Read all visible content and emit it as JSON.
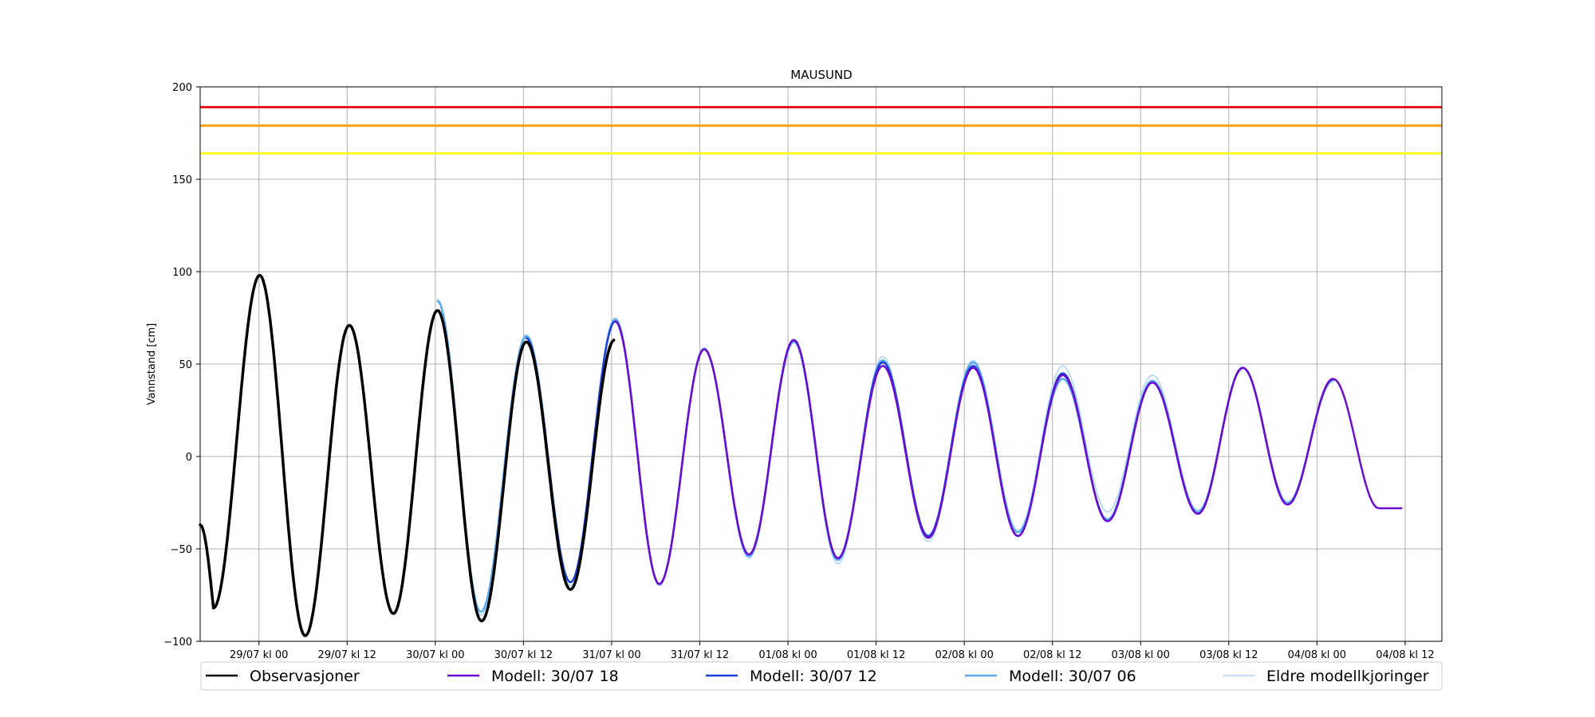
{
  "chart_data": {
    "type": "line",
    "title": "MAUSUND",
    "xlabel": "",
    "ylabel": "Vannstand [cm]",
    "ylim": [
      -100,
      200
    ],
    "yticks": [
      -100,
      -50,
      0,
      50,
      100,
      150,
      200
    ],
    "x_unit": "hours since 29/07 kl 00",
    "xlim": [
      -8,
      161
    ],
    "xticks": [
      {
        "x": 0,
        "label": "29/07 kl 00"
      },
      {
        "x": 12,
        "label": "29/07 kl 12"
      },
      {
        "x": 24,
        "label": "30/07 kl 00"
      },
      {
        "x": 36,
        "label": "30/07 kl 12"
      },
      {
        "x": 48,
        "label": "31/07 kl 00"
      },
      {
        "x": 60,
        "label": "31/07 kl 12"
      },
      {
        "x": 72,
        "label": "01/08 kl 00"
      },
      {
        "x": 84,
        "label": "01/08 kl 12"
      },
      {
        "x": 96,
        "label": "02/08 kl 00"
      },
      {
        "x": 108,
        "label": "02/08 kl 12"
      },
      {
        "x": 120,
        "label": "03/08 kl 00"
      },
      {
        "x": 132,
        "label": "03/08 kl 12"
      },
      {
        "x": 144,
        "label": "04/08 kl 00"
      },
      {
        "x": 156,
        "label": "04/08 kl 12"
      }
    ],
    "grid": true,
    "thresholds": [
      {
        "y": 189,
        "color": "#e41a1c"
      },
      {
        "y": 179,
        "color": "#ff9f1a"
      },
      {
        "y": 164,
        "color": "#ffff33"
      }
    ],
    "series": [
      {
        "name": "Eldre modellkjoringer",
        "color": "#aad4f5",
        "width": 1.5,
        "points": [
          [
            24.3,
            85
          ],
          [
            30.2,
            -86
          ],
          [
            36.4,
            66
          ],
          [
            42.4,
            -70
          ],
          [
            48.5,
            75
          ],
          [
            54.5,
            -70
          ],
          [
            60.6,
            59
          ],
          [
            66.7,
            -55
          ],
          [
            72.8,
            62
          ],
          [
            78.8,
            -58
          ],
          [
            84.9,
            54
          ],
          [
            91.1,
            -46
          ],
          [
            97.2,
            52
          ],
          [
            103.3,
            -40
          ],
          [
            109.4,
            49
          ],
          [
            115.5,
            -30
          ],
          [
            121.6,
            44
          ],
          [
            127.8,
            -29
          ],
          [
            133.9,
            47
          ]
        ]
      },
      {
        "name": "Modell: 30/07 06",
        "color": "#5aaaf0",
        "width": 2.5,
        "points": [
          [
            24.3,
            84
          ],
          [
            30.2,
            -84
          ],
          [
            36.4,
            65
          ],
          [
            42.4,
            -68
          ],
          [
            48.5,
            74
          ],
          [
            54.5,
            -69
          ],
          [
            60.6,
            58
          ],
          [
            66.7,
            -54
          ],
          [
            72.8,
            62
          ],
          [
            78.8,
            -56
          ],
          [
            84.9,
            52
          ],
          [
            91.1,
            -43
          ],
          [
            97.2,
            51
          ],
          [
            103.3,
            -41
          ],
          [
            109.4,
            42
          ],
          [
            115.5,
            -34
          ],
          [
            121.6,
            41
          ],
          [
            127.8,
            -30
          ],
          [
            133.9,
            48
          ],
          [
            140.0,
            -25
          ],
          [
            146.2,
            41
          ]
        ]
      },
      {
        "name": "Modell: 30/07 12",
        "color": "#1f3fd9",
        "width": 2.5,
        "points": [
          [
            36.4,
            64
          ],
          [
            42.4,
            -68
          ],
          [
            48.5,
            73
          ],
          [
            54.5,
            -69
          ],
          [
            60.6,
            58
          ],
          [
            66.7,
            -53
          ],
          [
            72.8,
            63
          ],
          [
            78.8,
            -55
          ],
          [
            84.9,
            51
          ],
          [
            91.1,
            -43
          ],
          [
            97.2,
            49
          ],
          [
            103.3,
            -43
          ],
          [
            109.4,
            45
          ],
          [
            115.5,
            -35
          ],
          [
            121.6,
            40
          ],
          [
            127.8,
            -31
          ],
          [
            133.9,
            48
          ],
          [
            140.0,
            -26
          ],
          [
            146.2,
            42
          ]
        ]
      },
      {
        "name": "Modell: 30/07 18",
        "color": "#6a0dd0",
        "width": 2.5,
        "points": [
          [
            48.5,
            73
          ],
          [
            54.5,
            -69
          ],
          [
            60.6,
            58
          ],
          [
            66.7,
            -53
          ],
          [
            72.8,
            63
          ],
          [
            78.8,
            -55
          ],
          [
            84.9,
            49
          ],
          [
            91.1,
            -44
          ],
          [
            97.2,
            48
          ],
          [
            103.3,
            -43
          ],
          [
            109.4,
            44
          ],
          [
            115.5,
            -35
          ],
          [
            121.6,
            40
          ],
          [
            127.8,
            -31
          ],
          [
            133.9,
            48
          ],
          [
            140.0,
            -26
          ],
          [
            146.2,
            42
          ]
        ],
        "end": [
          155.5,
          -28
        ]
      },
      {
        "name": "Observasjoner",
        "color": "#000000",
        "width": 3.5,
        "start": [
          -8,
          -37
        ],
        "points": [
          [
            -6.2,
            -82
          ],
          [
            0.1,
            98
          ],
          [
            6.3,
            -97
          ],
          [
            12.3,
            71
          ],
          [
            18.3,
            -85
          ],
          [
            24.3,
            79
          ],
          [
            30.3,
            -89
          ],
          [
            36.4,
            62
          ],
          [
            42.4,
            -72
          ]
        ],
        "end": [
          48.3,
          63
        ]
      }
    ],
    "legend": {
      "position": "bottom",
      "entries": [
        {
          "label": "Observasjoner",
          "color": "#000000"
        },
        {
          "label": "Modell: 30/07 18",
          "color": "#6a0dd0"
        },
        {
          "label": "Modell: 30/07 12",
          "color": "#1f3fd9"
        },
        {
          "label": "Modell: 30/07 06",
          "color": "#5aaaf0"
        },
        {
          "label": "Eldre modellkjoringer",
          "color": "#aad4f5"
        }
      ]
    }
  }
}
